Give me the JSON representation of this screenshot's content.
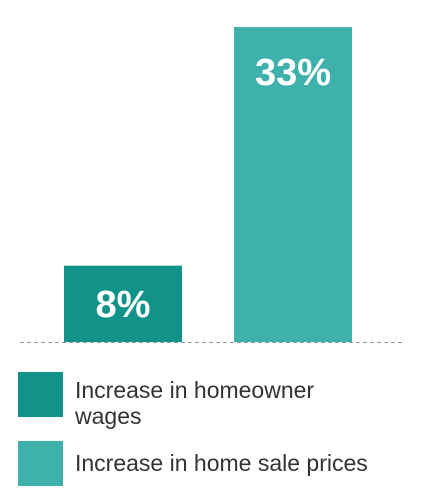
{
  "chart_data": {
    "type": "bar",
    "categories": [
      "Increase in homeowner wages",
      "Increase in home sale prices"
    ],
    "values": [
      8,
      33
    ],
    "data_labels": [
      "8%",
      "33%"
    ],
    "colors": [
      "#11938a",
      "#3eb1aa"
    ],
    "baseline_color": "#999999",
    "ylim": [
      0,
      35
    ],
    "grid": false,
    "legend_position": "bottom-left"
  },
  "legend": [
    {
      "label": "Increase in homeowner wages",
      "color": "#11938a"
    },
    {
      "label": "Increase in home sale prices",
      "color": "#3eb1aa"
    }
  ]
}
